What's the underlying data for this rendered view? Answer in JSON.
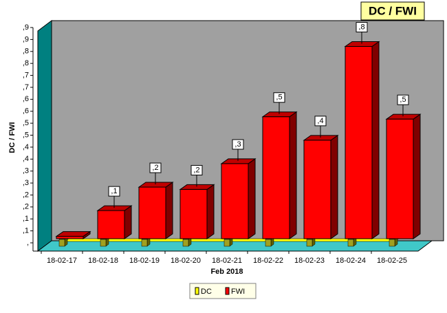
{
  "chart_data": {
    "type": "bar3d",
    "title": "DC / FWI",
    "y_label": "DC / FWI",
    "x_label": "Feb 2018",
    "categories": [
      "18-02-17",
      "18-02-18",
      "18-02-19",
      "18-02-20",
      "18-02-21",
      "18-02-22",
      "18-02-23",
      "18-02-24",
      "18-02-25"
    ],
    "series": [
      {
        "name": "DC",
        "color": "#ffff00",
        "values": [
          0,
          0,
          0,
          0,
          0,
          0,
          0,
          0,
          0
        ]
      },
      {
        "name": "FWI",
        "color": "#ff0000",
        "values": [
          0.01,
          0.12,
          0.22,
          0.21,
          0.32,
          0.52,
          0.42,
          0.82,
          0.51
        ],
        "value_labels": [
          null,
          ",1",
          ",2",
          ",2",
          ",3",
          ",5",
          ",4",
          ",8",
          ",5"
        ]
      }
    ],
    "ylim": [
      0,
      0.9
    ],
    "yticks": [
      {
        "value": 0,
        "label": ","
      },
      {
        "value": 0.05,
        "label": ",1"
      },
      {
        "value": 0.1,
        "label": ",1"
      },
      {
        "value": 0.15,
        "label": ",2"
      },
      {
        "value": 0.2,
        "label": ",2"
      },
      {
        "value": 0.25,
        "label": ",3"
      },
      {
        "value": 0.3,
        "label": ",3"
      },
      {
        "value": 0.35,
        "label": ",4"
      },
      {
        "value": 0.4,
        "label": ",4"
      },
      {
        "value": 0.45,
        "label": ",5"
      },
      {
        "value": 0.5,
        "label": ",5"
      },
      {
        "value": 0.55,
        "label": ",6"
      },
      {
        "value": 0.6,
        "label": ",6"
      },
      {
        "value": 0.65,
        "label": ",7"
      },
      {
        "value": 0.7,
        "label": ",7"
      },
      {
        "value": 0.75,
        "label": ",8"
      },
      {
        "value": 0.8,
        "label": ",8"
      },
      {
        "value": 0.85,
        "label": ",9"
      },
      {
        "value": 0.9,
        "label": ",9"
      }
    ]
  }
}
